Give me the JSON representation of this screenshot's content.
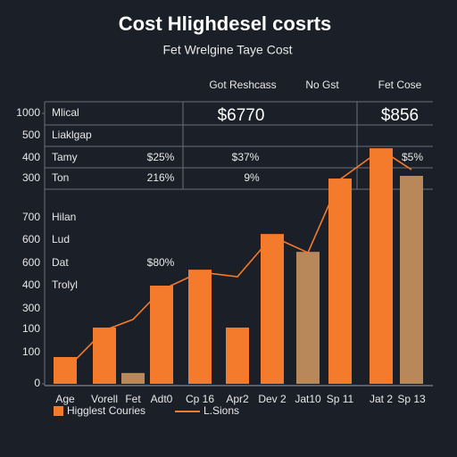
{
  "chart_data": {
    "type": "bar",
    "title": "Cost Hlighdesel cosrts",
    "subtitle": "Fet Wrelgine Taye Cost",
    "column_headers": [
      "Got Reshcass",
      "No Gst",
      "Fet Cose"
    ],
    "header_values": [
      "$6770",
      "$856"
    ],
    "row_labels": [
      "Mlical",
      "Liaklgap",
      "Tamy",
      "Ton",
      "Hilan",
      "Lud",
      "Dat",
      "Trolyl"
    ],
    "side_labels": [
      500,
      400,
      300,
      700,
      600,
      600,
      400,
      300,
      100,
      100
    ],
    "cell_texts": [
      "$25%",
      "$37%",
      "$5%",
      "216%",
      "9%",
      "$80%"
    ],
    "categories": [
      "Age",
      "Vorell",
      "Fet",
      "Adt0",
      "Cp 16",
      "Apr2",
      "Dev 2",
      "Jat10",
      "Sp 11",
      "Jat 2",
      "Sp 13"
    ],
    "series": [
      {
        "name": "Higglest Couries",
        "type": "bar",
        "color": "#f47a2c",
        "colors": [
          "#f47a2c",
          "#f47a2c",
          "#b8875a",
          "#f47a2c",
          "#f47a2c",
          "#f47a2c",
          "#f47a2c",
          "#b8875a",
          "#f47a2c",
          "#f47a2c",
          "#b8875a"
        ],
        "values": [
          99,
          208,
          40,
          363,
          422,
          208,
          554,
          488,
          759,
          871,
          769
        ]
      },
      {
        "name": "L.Sions",
        "type": "line",
        "color": "#f47a2c",
        "values": [
          50,
          198,
          238,
          347,
          413,
          396,
          545,
          485,
          756,
          865,
          792
        ]
      }
    ],
    "ylim": [
      0,
      1000
    ],
    "yticks": [
      1000,
      0
    ]
  }
}
